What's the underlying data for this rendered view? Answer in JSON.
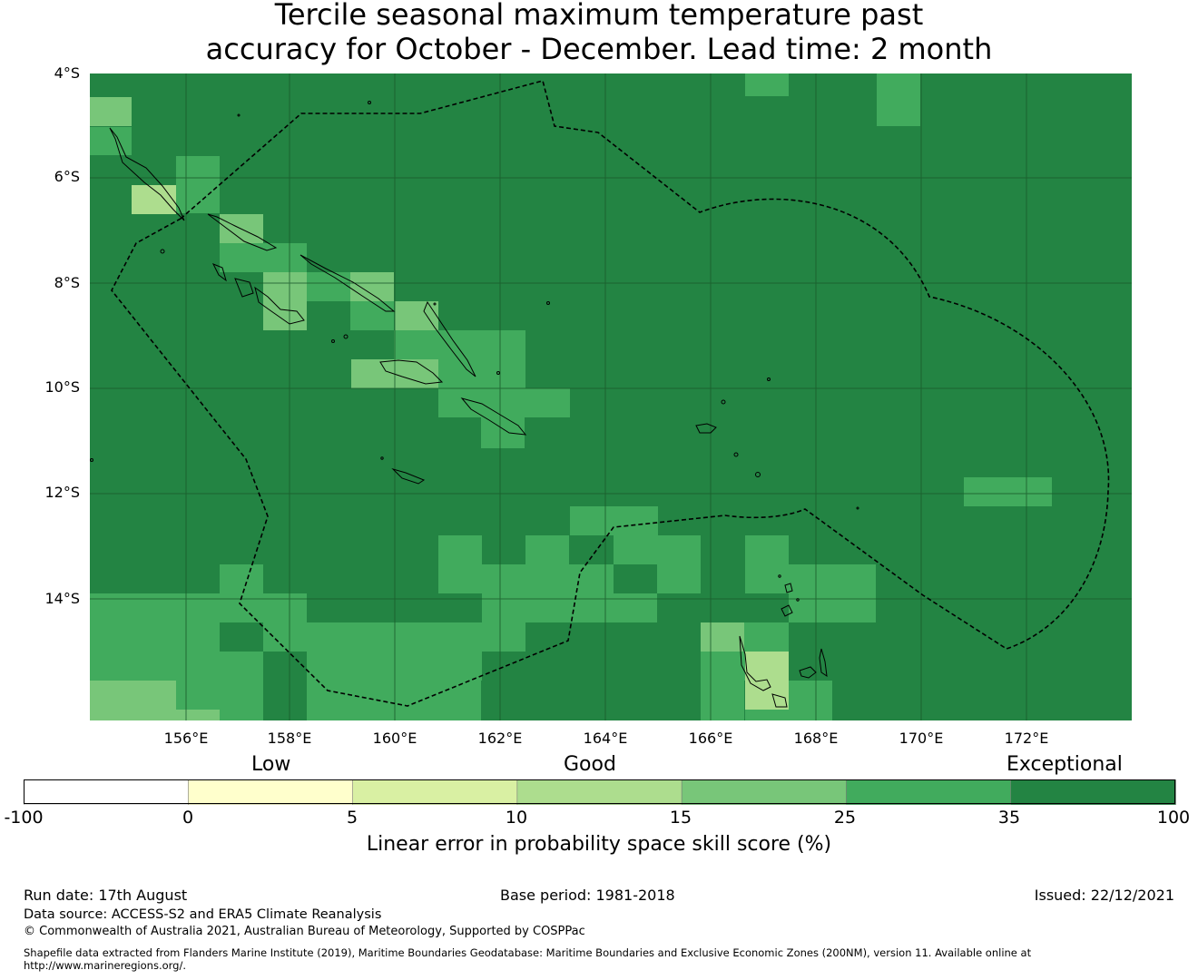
{
  "title": {
    "line1": "Tercile seasonal maximum temperature past",
    "line2": "accuracy for October - December. Lead time: 2 month"
  },
  "map": {
    "lat_labels": [
      "4°S",
      "6°S",
      "8°S",
      "10°S",
      "12°S",
      "14°S"
    ],
    "lon_labels": [
      "156°E",
      "158°E",
      "160°E",
      "162°E",
      "164°E",
      "166°E",
      "168°E",
      "170°E",
      "172°E"
    ],
    "gridline_color": "#1a5a2b",
    "coastline_color": "#000000",
    "eez_line_style": "dashed"
  },
  "colorbar": {
    "quality_labels": [
      "Low",
      "Good",
      "Exceptional"
    ],
    "ticks": [
      "-100",
      "0",
      "5",
      "10",
      "15",
      "25",
      "35",
      "100"
    ],
    "colors": [
      "#ffffff",
      "#ffffcc",
      "#d9f0a3",
      "#addd8e",
      "#78c679",
      "#41ab5d",
      "#238443"
    ],
    "label": "Linear error in probability space skill score (%)"
  },
  "footer": {
    "run_date": "Run date: 17th August",
    "base_period": "Base period: 1981-2018",
    "issued": "Issued: 22/12/2021",
    "data_source": "Data source: ACCESS-S2 and ERA5 Climate Reanalysis",
    "copyright": "© Commonwealth of Australia 2021, Australian Bureau of Meteorology, Supported by COSPPac",
    "shapefile_line1": "Shapefile data extracted from Flanders Marine Institute (2019), Maritime Boundaries Geodatabase: Maritime Boundaries and Exclusive Economic Zones (200NM), version 11. Available online at",
    "shapefile_line2": "http://www.marineregions.org/."
  }
}
